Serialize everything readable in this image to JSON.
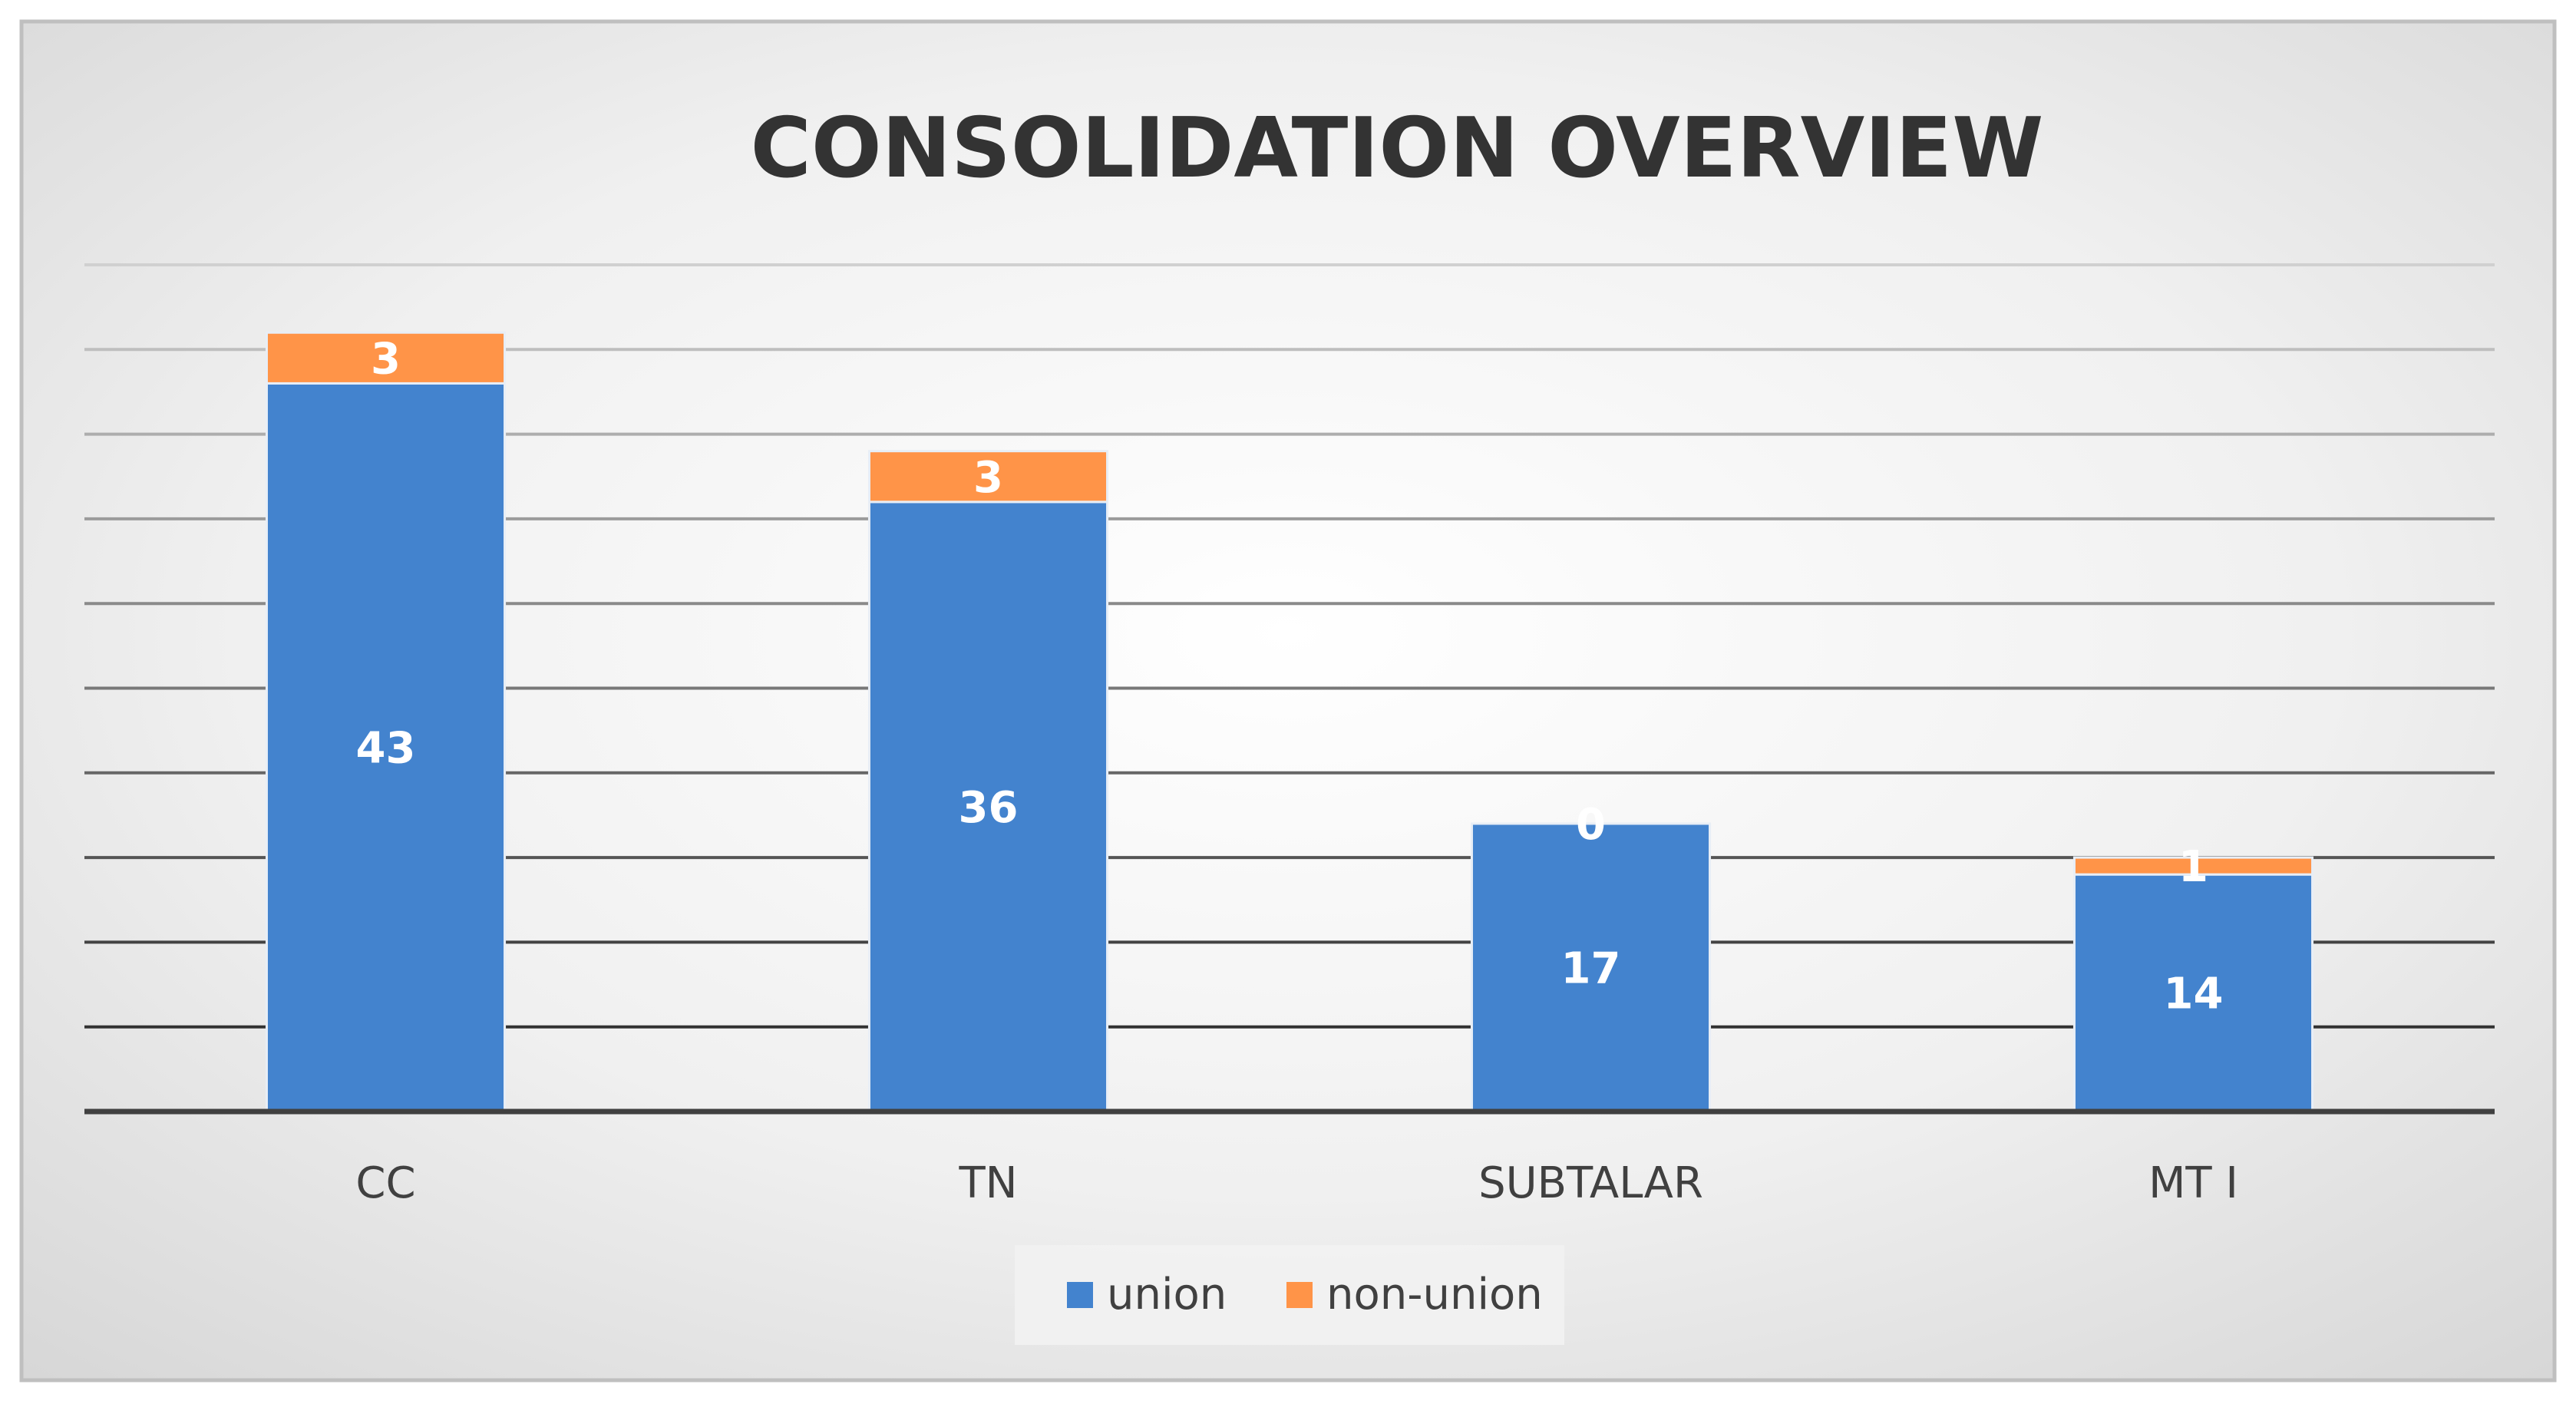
{
  "chart_data": {
    "type": "bar",
    "stacked": true,
    "title": "CONSOLIDATION OVERVIEW",
    "categories": [
      "CC",
      "TN",
      "SUBTALAR",
      "MT I"
    ],
    "series": [
      {
        "name": "union",
        "values": [
          43,
          36,
          17,
          14
        ],
        "color": "#4383CE"
      },
      {
        "name": "non-union",
        "values": [
          3,
          3,
          0,
          1
        ],
        "color": "#FF9448"
      }
    ],
    "ylim": [
      0,
      50
    ],
    "ytick_step": 5,
    "grid": true,
    "legend": "bottom",
    "colors": {
      "background_center": "#FFFFFF",
      "background_edge": "#D9D9D9",
      "frame": "#BFBFBF",
      "axis": "#404040"
    }
  }
}
